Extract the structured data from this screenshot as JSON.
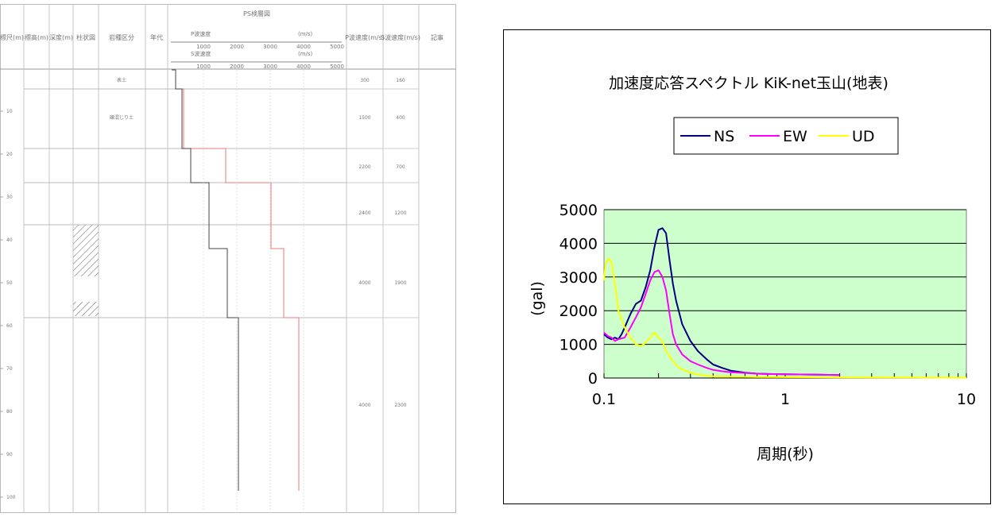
{
  "borehole_log": {
    "col_headers": [
      "標尺(m)",
      "標高(m)",
      "深度(m)",
      "柱状図",
      "岩種区分",
      "年代",
      "PS検層図",
      "P波速度(m/s)",
      "S波速度(m/s)",
      "記事"
    ],
    "velocity_legend": {
      "p_label": "P波速度",
      "s_label": "S波速度",
      "unit": "(m/s)",
      "ticks": [
        "1000",
        "2000",
        "3000",
        "4000",
        "5000"
      ]
    },
    "depth_ticks": [
      "10",
      "20",
      "30",
      "40",
      "50",
      "60",
      "70",
      "80",
      "90",
      "100"
    ],
    "layers": [
      {
        "rock": "表土",
        "vp": "300",
        "vs": "160"
      },
      {
        "rock": "礫混じり土",
        "vp": "1500",
        "vs": "400"
      },
      {
        "rock": "",
        "vp": "2200",
        "vs": "700"
      },
      {
        "rock": "",
        "vp": "2400",
        "vs": "1200"
      },
      {
        "rock": "",
        "vp": "4000",
        "vs": "1900"
      },
      {
        "rock": "",
        "vp": "4000",
        "vs": "2300"
      }
    ]
  },
  "chart_data": {
    "type": "line",
    "title": "加速度応答スペクトル KiK-net玉山(地表)",
    "xlabel": "周期(秒)",
    "ylabel": "(gal)",
    "xscale": "log",
    "xlim": [
      0.1,
      10
    ],
    "ylim": [
      0,
      5000
    ],
    "xticks": [
      "0.1",
      "1",
      "10"
    ],
    "yticks": [
      "0",
      "1000",
      "2000",
      "3000",
      "4000",
      "5000"
    ],
    "grid": "horizontal",
    "legend_position": "top",
    "plot_background": "#ccffcc",
    "series": [
      {
        "name": "NS",
        "color": "#000080",
        "x": [
          0.1,
          0.105,
          0.11,
          0.115,
          0.12,
          0.125,
          0.13,
          0.14,
          0.15,
          0.16,
          0.17,
          0.18,
          0.19,
          0.2,
          0.21,
          0.22,
          0.23,
          0.24,
          0.25,
          0.27,
          0.3,
          0.33,
          0.37,
          0.4,
          0.45,
          0.5,
          0.6,
          0.7,
          0.8,
          1.0,
          1.5,
          2.0
        ],
        "y": [
          1300,
          1200,
          1150,
          1200,
          1150,
          1300,
          1500,
          1900,
          2200,
          2300,
          2700,
          3200,
          3900,
          4400,
          4450,
          4300,
          3500,
          2800,
          2300,
          1600,
          1100,
          800,
          550,
          400,
          300,
          220,
          160,
          130,
          120,
          110,
          100,
          90
        ]
      },
      {
        "name": "EW",
        "color": "#ff00ff",
        "x": [
          0.1,
          0.105,
          0.11,
          0.115,
          0.12,
          0.13,
          0.14,
          0.15,
          0.16,
          0.17,
          0.18,
          0.19,
          0.2,
          0.21,
          0.22,
          0.23,
          0.24,
          0.25,
          0.27,
          0.3,
          0.33,
          0.37,
          0.4,
          0.45,
          0.5,
          0.6,
          0.7,
          0.8,
          1.0,
          1.5,
          2.0
        ],
        "y": [
          1350,
          1250,
          1200,
          1100,
          1150,
          1200,
          1500,
          1800,
          2100,
          2500,
          2900,
          3150,
          3200,
          3000,
          2600,
          1900,
          1300,
          1000,
          700,
          500,
          400,
          300,
          240,
          200,
          170,
          150,
          130,
          120,
          110,
          100,
          90
        ]
      },
      {
        "name": "UD",
        "color": "#ffff00",
        "x": [
          0.1,
          0.102,
          0.106,
          0.11,
          0.115,
          0.12,
          0.13,
          0.14,
          0.15,
          0.16,
          0.17,
          0.18,
          0.19,
          0.2,
          0.21,
          0.22,
          0.24,
          0.26,
          0.3,
          0.35,
          0.4,
          0.5,
          0.7,
          1.0,
          2.0,
          5.0,
          10.0
        ],
        "y": [
          2900,
          3400,
          3550,
          3450,
          2800,
          2000,
          1500,
          1200,
          1000,
          950,
          1050,
          1200,
          1350,
          1200,
          1100,
          800,
          500,
          300,
          150,
          80,
          50,
          40,
          30,
          25,
          20,
          15,
          10
        ]
      }
    ]
  }
}
